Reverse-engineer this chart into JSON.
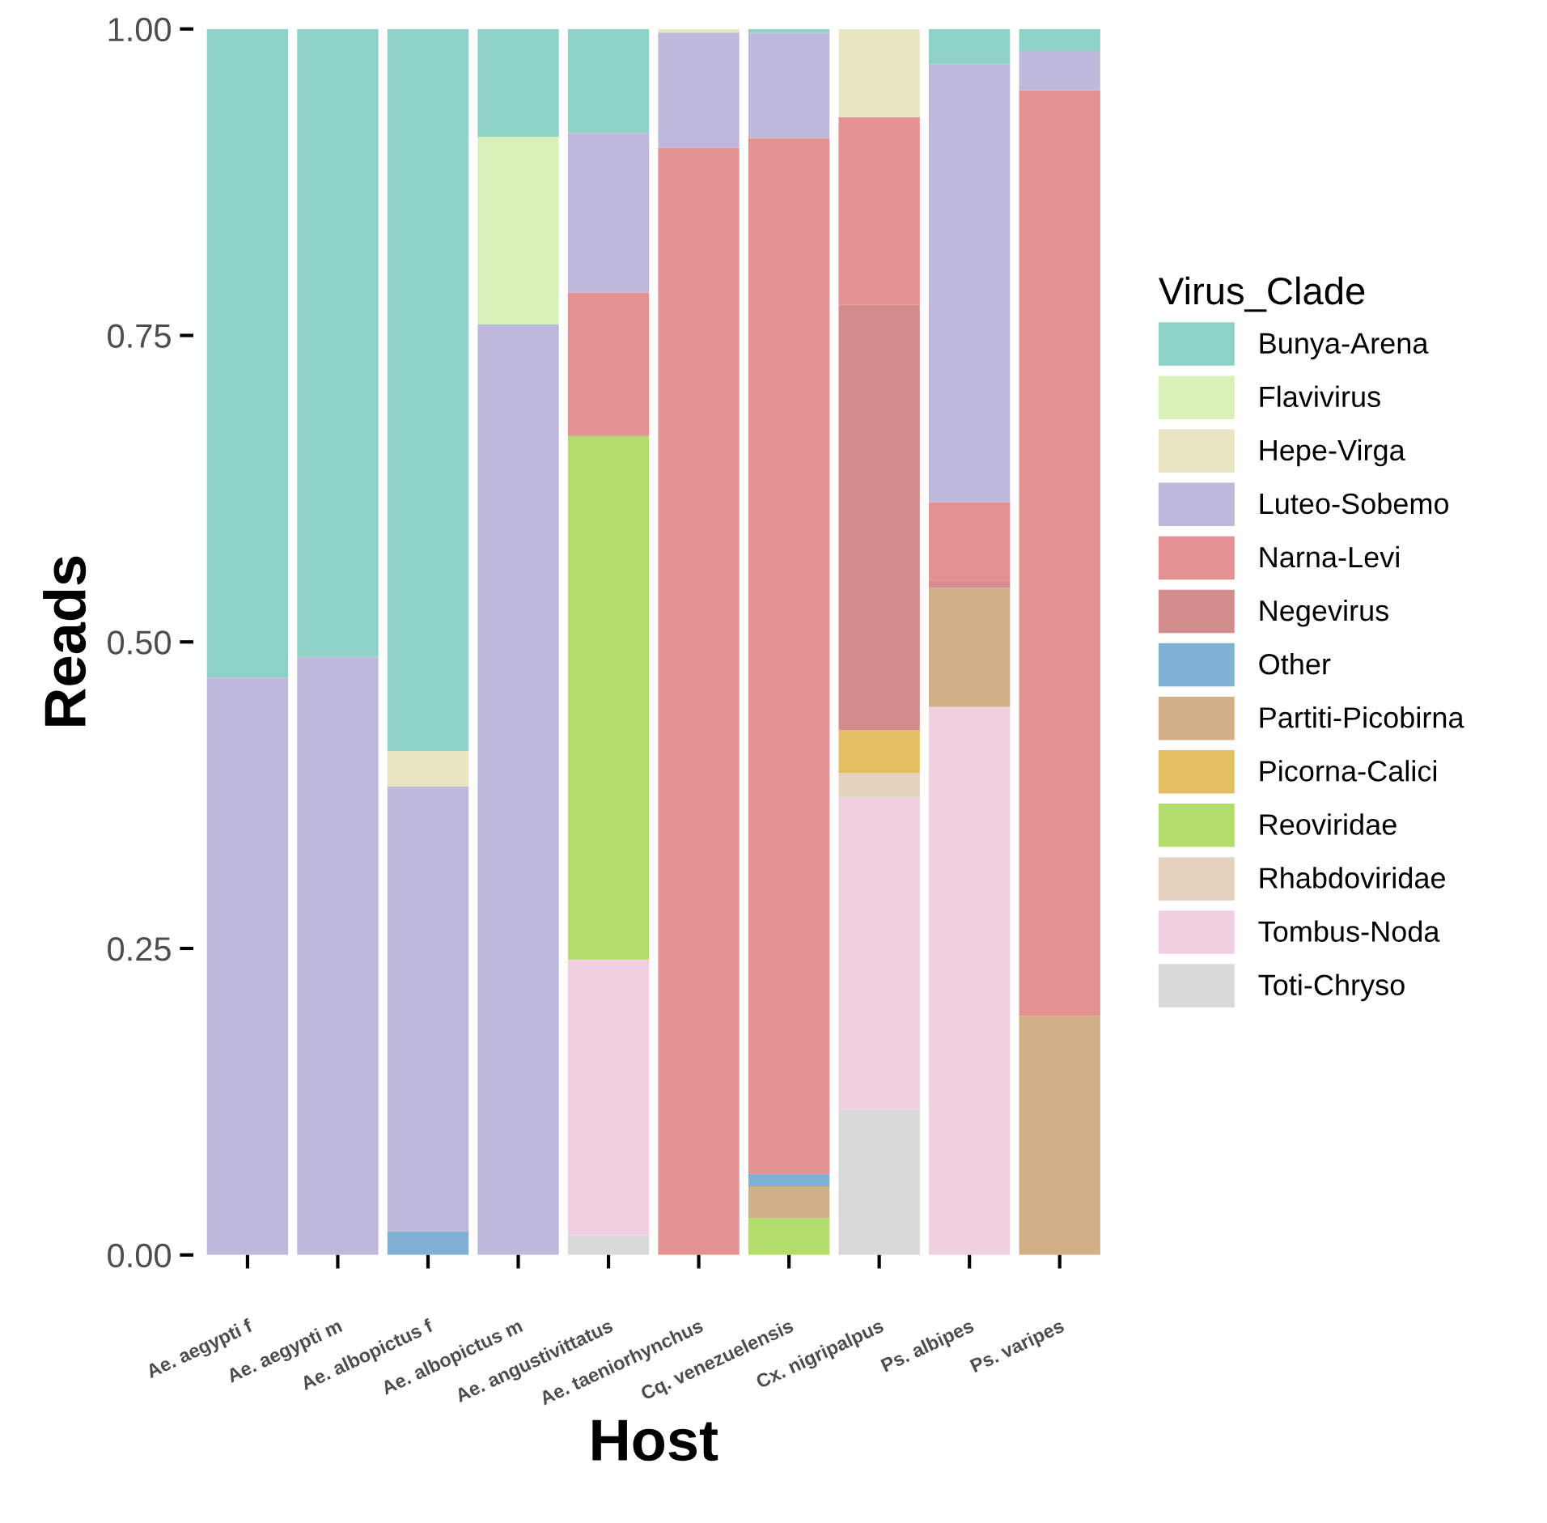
{
  "chart_data": {
    "type": "bar",
    "stacked": true,
    "xlabel": "Host",
    "ylabel": "Reads",
    "legend_title": "Virus_Clade",
    "legend": "right",
    "categories": [
      "Ae. aegypti f",
      "Ae. aegypti m",
      "Ae. albopictus f",
      "Ae. albopictus m",
      "Ae. angustivittatus",
      "Ae. taeniorhynchus",
      "Cq. venezuelensis",
      "Cx. nigripalpus",
      "Ps. albipes",
      "Ps. varipes"
    ],
    "ylim": [
      0,
      1
    ],
    "yticks": [
      {
        "value": 0,
        "label": "0.00"
      },
      {
        "value": 0.25,
        "label": "0.25"
      },
      {
        "value": 0.5,
        "label": "0.50"
      },
      {
        "value": 0.75,
        "label": "0.75"
      },
      {
        "value": 1,
        "label": "1.00"
      }
    ],
    "grid": false,
    "series": [
      {
        "name": "Toti-Chryso",
        "color": "#d9d9d9",
        "values": [
          0,
          0,
          0,
          0,
          0.016,
          0,
          0,
          0.119,
          0,
          0
        ]
      },
      {
        "name": "Tombus-Noda",
        "color": "#efcfe0",
        "values": [
          0,
          0,
          0,
          0,
          0.225,
          0,
          0,
          0.254,
          0.447,
          0
        ]
      },
      {
        "name": "Rhabdoviridae",
        "color": "#e4d3be",
        "values": [
          0,
          0,
          0,
          0,
          0,
          0,
          0,
          0.02,
          0,
          0
        ]
      },
      {
        "name": "Reoviridae",
        "color": "#b3dd6b",
        "values": [
          0,
          0,
          0,
          0,
          0.427,
          0,
          0.03,
          0,
          0,
          0
        ]
      },
      {
        "name": "Picorna-Calici",
        "color": "#e3bf62",
        "values": [
          0,
          0,
          0,
          0,
          0,
          0,
          0,
          0.035,
          0,
          0
        ]
      },
      {
        "name": "Partiti-Picobirna",
        "color": "#d2af87",
        "values": [
          0,
          0,
          0,
          0,
          0,
          0,
          0.026,
          0,
          0.097,
          0.195
        ]
      },
      {
        "name": "Other",
        "color": "#80b1d3",
        "values": [
          0,
          0,
          0.019,
          0,
          0,
          0,
          0.01,
          0,
          0,
          0
        ]
      },
      {
        "name": "Negevirus",
        "color": "#d48d8d",
        "values": [
          0,
          0,
          0,
          0,
          0,
          0,
          0,
          0.347,
          0.005,
          0
        ]
      },
      {
        "name": "Narna-Levi",
        "color": "#e49191",
        "values": [
          0,
          0,
          0,
          0,
          0.117,
          0.903,
          0.845,
          0.153,
          0.065,
          0.755
        ]
      },
      {
        "name": "Luteo-Sobemo",
        "color": "#beb9da",
        "values": [
          0.471,
          0.488,
          0.363,
          0.759,
          0.13,
          0.094,
          0.086,
          0,
          0.357,
          0.032
        ]
      },
      {
        "name": "Hepe-Virga",
        "color": "#e8e6c2",
        "values": [
          0,
          0,
          0.029,
          0,
          0,
          0.003,
          0,
          0.072,
          0,
          0
        ]
      },
      {
        "name": "Flavivirus",
        "color": "#d9f0b8",
        "values": [
          0,
          0,
          0,
          0.153,
          0,
          0,
          0,
          0,
          0,
          0
        ]
      },
      {
        "name": "Bunya-Arena",
        "color": "#8ed1c6",
        "values": [
          0.529,
          0.512,
          0.589,
          0.088,
          0.085,
          0,
          0.003,
          0,
          0.029,
          0.018
        ]
      }
    ]
  }
}
